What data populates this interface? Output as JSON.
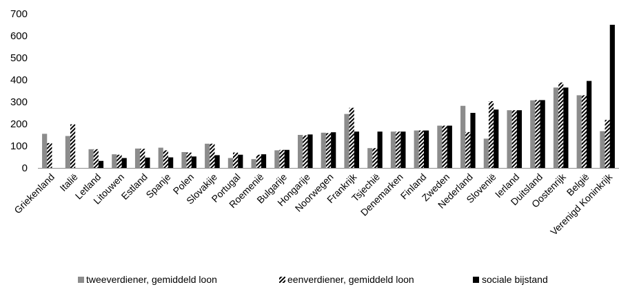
{
  "chart_data": {
    "type": "bar",
    "title": "",
    "xlabel": "",
    "ylabel": "",
    "ylim": [
      0,
      700
    ],
    "yticks": [
      0,
      100,
      200,
      300,
      400,
      500,
      600,
      700
    ],
    "grid": false,
    "legend_position": "bottom",
    "categories": [
      "Griekenland",
      "Italië",
      "Letland",
      "Litouwen",
      "Estland",
      "Spanje",
      "Polen",
      "Slovakije",
      "Portugal",
      "Roemenië",
      "Bulgarije",
      "Hongarije",
      "Noorwegen",
      "Frankrijk",
      "Tsjechië",
      "Denemarken",
      "Finland",
      "Zweden",
      "Nederland",
      "Slovenië",
      "Ierland",
      "Duitsland",
      "Oostenrijk",
      "België",
      "Verenigd Koninkrijk"
    ],
    "series": [
      {
        "name": "tweeverdiener, gemiddeld loon",
        "pattern": "solid-gray",
        "color": "#8c8c8c",
        "values": [
          155,
          145,
          85,
          62,
          88,
          92,
          72,
          110,
          45,
          40,
          80,
          150,
          160,
          245,
          90,
          165,
          170,
          192,
          282,
          133,
          262,
          307,
          365,
          330,
          167
        ]
      },
      {
        "name": "eenverdiener, gemiddeld loon",
        "pattern": "hatch",
        "color": "#000000",
        "values": [
          113,
          198,
          85,
          60,
          87,
          80,
          70,
          110,
          70,
          60,
          82,
          148,
          158,
          273,
          90,
          165,
          170,
          192,
          163,
          303,
          262,
          308,
          388,
          330,
          218
        ]
      },
      {
        "name": "sociale bijstand",
        "pattern": "solid-black",
        "color": "#000000",
        "values": [
          0,
          0,
          32,
          45,
          47,
          48,
          52,
          58,
          60,
          62,
          82,
          152,
          162,
          165,
          165,
          165,
          170,
          192,
          250,
          265,
          262,
          308,
          365,
          395,
          650
        ]
      }
    ]
  }
}
